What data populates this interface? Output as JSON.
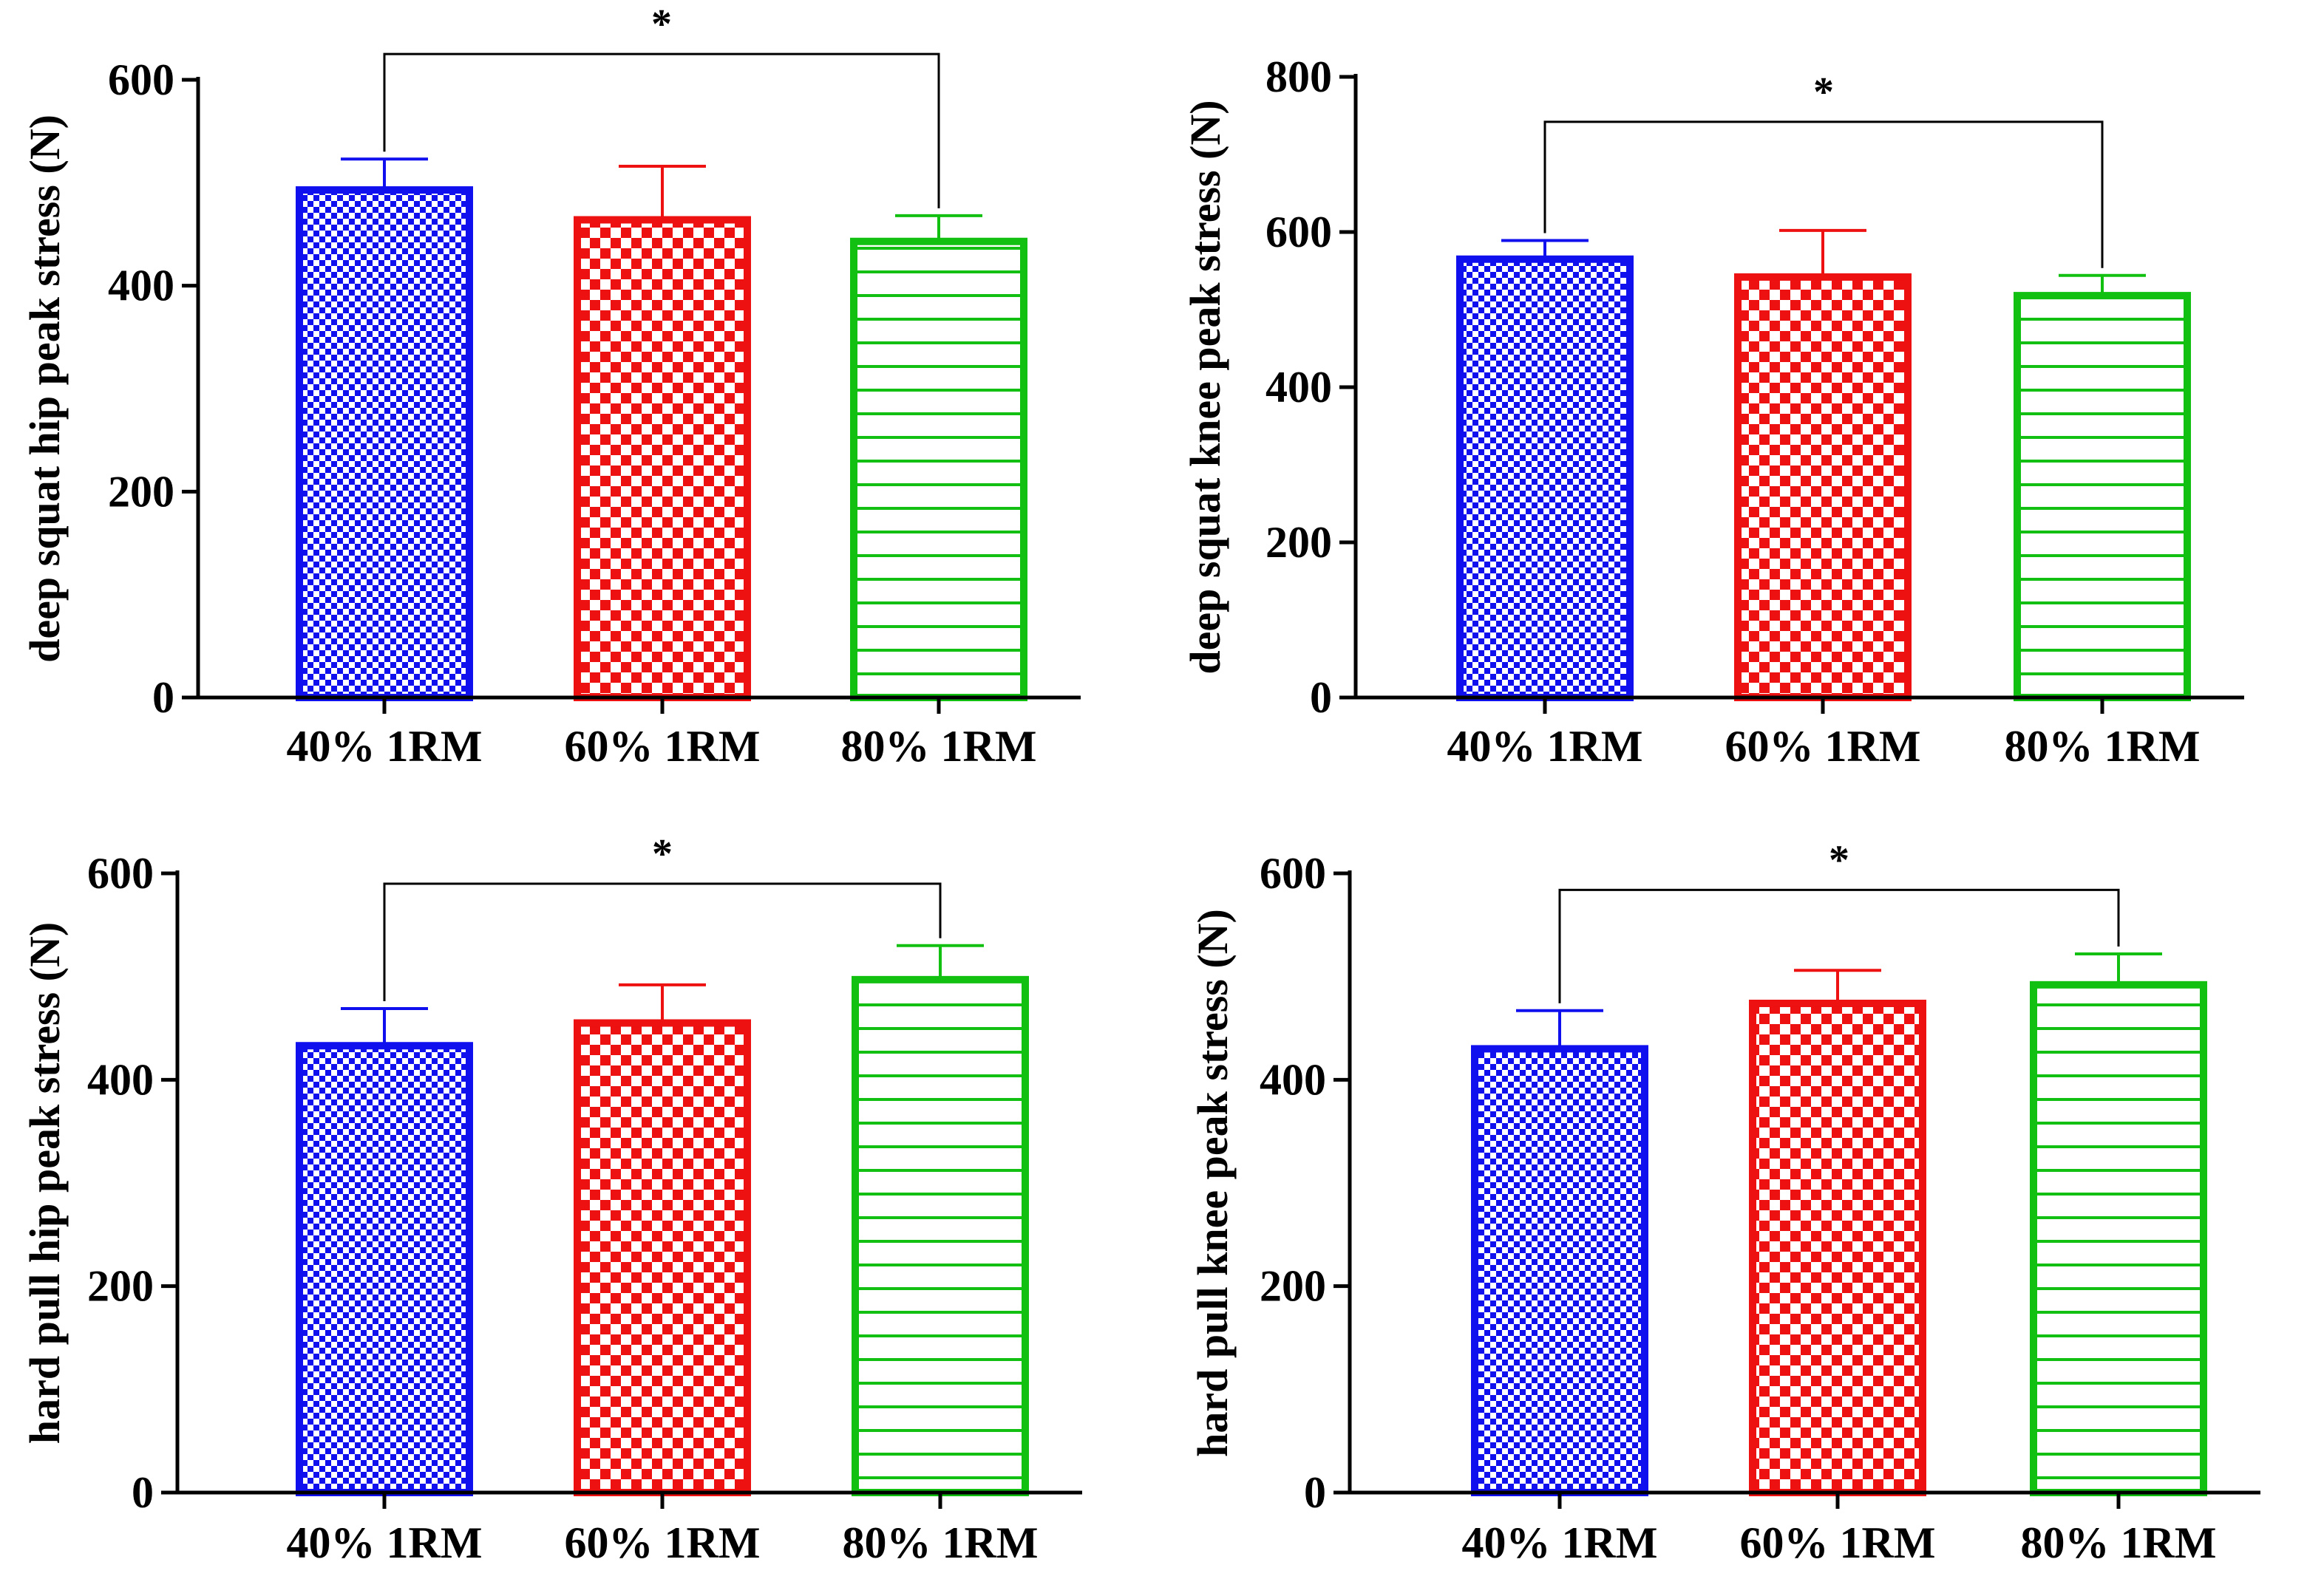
{
  "figure": {
    "description_panels": 4
  },
  "chart_data": [
    {
      "type": "bar",
      "title": "",
      "xlabel": "",
      "ylabel": "deep squat hip peak stress (N)",
      "ylim": [
        0,
        600
      ],
      "yticks": [
        0,
        200,
        400,
        600
      ],
      "categories": [
        "40% 1RM",
        "60% 1RM",
        "80% 1RM"
      ],
      "values": [
        493,
        464,
        443
      ],
      "errors": [
        30,
        52,
        25
      ],
      "colors": [
        "#1010EE",
        "#EE1111",
        "#11C011"
      ],
      "patterns": [
        "checker-fine",
        "checker-coarse",
        "horizontal-lines"
      ],
      "significance": {
        "from": 0,
        "to": 2,
        "label": "*",
        "level": 625
      }
    },
    {
      "type": "bar",
      "title": "",
      "xlabel": "",
      "ylabel": "deep squat knee peak stress (N)",
      "ylim": [
        0,
        800
      ],
      "yticks": [
        0,
        200,
        400,
        600,
        800
      ],
      "categories": [
        "40% 1RM",
        "60% 1RM",
        "80% 1RM"
      ],
      "values": [
        565,
        542,
        518
      ],
      "errors": [
        24,
        60,
        26
      ],
      "colors": [
        "#1010EE",
        "#EE1111",
        "#11C011"
      ],
      "patterns": [
        "checker-fine",
        "checker-coarse",
        "horizontal-lines"
      ],
      "significance": {
        "from": 0,
        "to": 2,
        "label": "*",
        "level": 742
      }
    },
    {
      "type": "bar",
      "title": "",
      "xlabel": "",
      "ylabel": "hard pull hip peak stress (N)",
      "ylim": [
        0,
        600
      ],
      "yticks": [
        0,
        200,
        400,
        600
      ],
      "categories": [
        "40% 1RM",
        "60% 1RM",
        "80% 1RM"
      ],
      "values": [
        433,
        455,
        497
      ],
      "errors": [
        36,
        37,
        33
      ],
      "colors": [
        "#1010EE",
        "#EE1111",
        "#11C011"
      ],
      "patterns": [
        "checker-fine",
        "checker-coarse",
        "horizontal-lines"
      ],
      "significance": {
        "from": 0,
        "to": 2,
        "label": "*",
        "level": 590
      }
    },
    {
      "type": "bar",
      "title": "",
      "xlabel": "",
      "ylabel": "hard pull knee peak stress (N)",
      "ylim": [
        0,
        600
      ],
      "yticks": [
        0,
        200,
        400,
        600
      ],
      "categories": [
        "40% 1RM",
        "60% 1RM",
        "80% 1RM"
      ],
      "values": [
        430,
        474,
        492
      ],
      "errors": [
        37,
        32,
        30
      ],
      "colors": [
        "#1010EE",
        "#EE1111",
        "#11C011"
      ],
      "patterns": [
        "checker-fine",
        "checker-coarse",
        "horizontal-lines"
      ],
      "significance": {
        "from": 0,
        "to": 2,
        "label": "*",
        "level": 584
      }
    }
  ]
}
